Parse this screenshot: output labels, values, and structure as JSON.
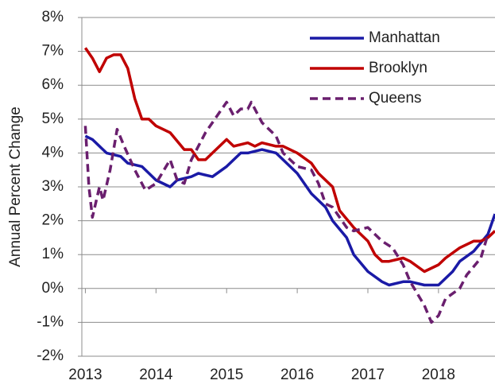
{
  "chart_data": {
    "type": "line",
    "y_label": "Annual Percent Change",
    "xlim": [
      2012.95,
      2018.8
    ],
    "xticks": [
      2013,
      2014,
      2015,
      2016,
      2017,
      2018
    ],
    "ylim": [
      -2,
      8
    ],
    "yticks": [
      {
        "value": -2,
        "label": "-2%"
      },
      {
        "value": -1,
        "label": "-1%"
      },
      {
        "value": 0,
        "label": "0%"
      },
      {
        "value": 1,
        "label": "1%"
      },
      {
        "value": 2,
        "label": "2%"
      },
      {
        "value": 3,
        "label": "3%"
      },
      {
        "value": 4,
        "label": "4%"
      },
      {
        "value": 5,
        "label": "5%"
      },
      {
        "value": 6,
        "label": "6%"
      },
      {
        "value": 7,
        "label": "7%"
      },
      {
        "value": 8,
        "label": "8%"
      }
    ],
    "grid": true,
    "legend": "upper right",
    "series": [
      {
        "name": "Manhattan",
        "color": "#1a1aa6",
        "dash": "solid",
        "x": [
          2013,
          2013.1,
          2013.3,
          2013.5,
          2013.6,
          2013.8,
          2014.0,
          2014.2,
          2014.3,
          2014.5,
          2014.6,
          2014.8,
          2015.0,
          2015.2,
          2015.3,
          2015.5,
          2015.7,
          2015.8,
          2016.0,
          2016.2,
          2016.4,
          2016.5,
          2016.7,
          2016.8,
          2017.0,
          2017.2,
          2017.3,
          2017.5,
          2017.6,
          2017.8,
          2018.0,
          2018.2,
          2018.3,
          2018.5,
          2018.7,
          2018.8
        ],
        "values": [
          4.5,
          4.4,
          4.0,
          3.9,
          3.7,
          3.6,
          3.2,
          3.0,
          3.2,
          3.3,
          3.4,
          3.3,
          3.6,
          4.0,
          4.0,
          4.1,
          4.0,
          3.8,
          3.4,
          2.8,
          2.4,
          2.0,
          1.5,
          1.0,
          0.5,
          0.2,
          0.1,
          0.2,
          0.2,
          0.1,
          0.1,
          0.5,
          0.8,
          1.1,
          1.6,
          2.2
        ]
      },
      {
        "name": "Brooklyn",
        "color": "#c00000",
        "dash": "solid",
        "x": [
          2013,
          2013.1,
          2013.2,
          2013.3,
          2013.4,
          2013.5,
          2013.6,
          2013.7,
          2013.8,
          2013.9,
          2014.0,
          2014.2,
          2014.4,
          2014.5,
          2014.6,
          2014.7,
          2014.8,
          2014.9,
          2015.0,
          2015.1,
          2015.3,
          2015.4,
          2015.5,
          2015.7,
          2015.8,
          2016.0,
          2016.2,
          2016.3,
          2016.5,
          2016.6,
          2016.8,
          2017.0,
          2017.1,
          2017.2,
          2017.3,
          2017.5,
          2017.6,
          2017.8,
          2018.0,
          2018.1,
          2018.3,
          2018.5,
          2018.6,
          2018.7,
          2018.8
        ],
        "values": [
          7.1,
          6.8,
          6.4,
          6.8,
          6.9,
          6.9,
          6.5,
          5.6,
          5.0,
          5.0,
          4.8,
          4.6,
          4.1,
          4.1,
          3.8,
          3.8,
          4.0,
          4.2,
          4.4,
          4.2,
          4.3,
          4.2,
          4.3,
          4.2,
          4.2,
          4.0,
          3.7,
          3.4,
          3.0,
          2.3,
          1.8,
          1.4,
          1.0,
          0.8,
          0.8,
          0.9,
          0.8,
          0.5,
          0.7,
          0.9,
          1.2,
          1.4,
          1.4,
          1.5,
          1.7
        ]
      },
      {
        "name": "Queens",
        "color": "#6a1f6e",
        "dash": "dashed",
        "x": [
          2013,
          2013.05,
          2013.1,
          2013.2,
          2013.25,
          2013.35,
          2013.45,
          2013.55,
          2013.7,
          2013.85,
          2014.0,
          2014.2,
          2014.3,
          2014.4,
          2014.5,
          2014.7,
          2014.9,
          2015.0,
          2015.1,
          2015.2,
          2015.3,
          2015.35,
          2015.5,
          2015.7,
          2015.8,
          2016.0,
          2016.2,
          2016.3,
          2016.4,
          2016.5,
          2016.7,
          2016.8,
          2017.0,
          2017.2,
          2017.35,
          2017.5,
          2017.6,
          2017.8,
          2017.9,
          2018.0,
          2018.1,
          2018.3,
          2018.4,
          2018.6,
          2018.7
        ],
        "values": [
          4.8,
          3.0,
          2.1,
          3.0,
          2.6,
          3.5,
          4.7,
          4.2,
          3.5,
          2.9,
          3.1,
          3.8,
          3.2,
          3.1,
          3.8,
          4.6,
          5.2,
          5.5,
          5.1,
          5.3,
          5.3,
          5.5,
          4.9,
          4.5,
          4.0,
          3.6,
          3.5,
          3.1,
          2.5,
          2.4,
          1.8,
          1.7,
          1.8,
          1.4,
          1.2,
          0.7,
          0.2,
          -0.5,
          -1.0,
          -0.8,
          -0.3,
          0.0,
          0.4,
          0.9,
          1.6
        ]
      }
    ]
  }
}
